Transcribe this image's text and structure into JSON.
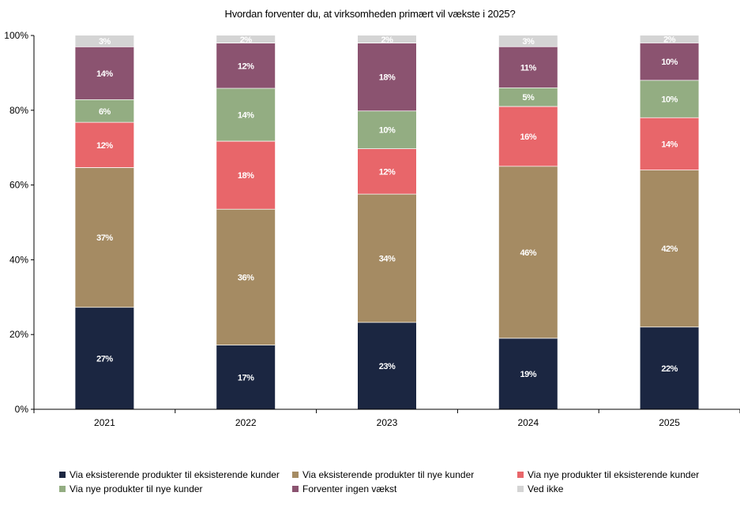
{
  "chart_data": {
    "type": "bar",
    "stacked": true,
    "title": "Hvordan forventer du, at virksomheden primært vil vækste i 2025?",
    "categories": [
      "2021",
      "2022",
      "2023",
      "2024",
      "2025"
    ],
    "yticks": [
      "0%",
      "20%",
      "40%",
      "60%",
      "80%",
      "100%"
    ],
    "ylim": [
      0,
      100
    ],
    "grid": false,
    "legend_position": "bottom",
    "series": [
      {
        "name": "Via eksisterende produkter til eksisterende kunder",
        "color": "#1b2641",
        "values": [
          27,
          17,
          23,
          19,
          22
        ],
        "labels": [
          "27%",
          "17%",
          "23%",
          "19%",
          "22%"
        ]
      },
      {
        "name": "Via eksisterende produkter til nye kunder",
        "color": "#a58b63",
        "values": [
          37,
          36,
          34,
          46,
          42
        ],
        "labels": [
          "37%",
          "36%",
          "34%",
          "46%",
          "42%"
        ]
      },
      {
        "name": "Via nye produkter til eksisterende kunder",
        "color": "#e8666a",
        "values": [
          12,
          18,
          12,
          16,
          14
        ],
        "labels": [
          "12%",
          "18%",
          "12%",
          "16%",
          "14%"
        ]
      },
      {
        "name": "Via nye produkter til nye kunder",
        "color": "#93ad82",
        "values": [
          6,
          14,
          10,
          5,
          10
        ],
        "labels": [
          "6%",
          "14%",
          "10%",
          "5%",
          "10%"
        ]
      },
      {
        "name": "Forventer ingen vækst",
        "color": "#8b5370",
        "values": [
          14,
          12,
          18,
          11,
          10
        ],
        "labels": [
          "14%",
          "12%",
          "18%",
          "11%",
          "10%"
        ]
      },
      {
        "name": "Ved ikke",
        "color": "#d4d4d4",
        "values": [
          3,
          2,
          2,
          3,
          2
        ],
        "labels": [
          "3%",
          "2%",
          "2%",
          "3%",
          "2%"
        ]
      }
    ]
  }
}
